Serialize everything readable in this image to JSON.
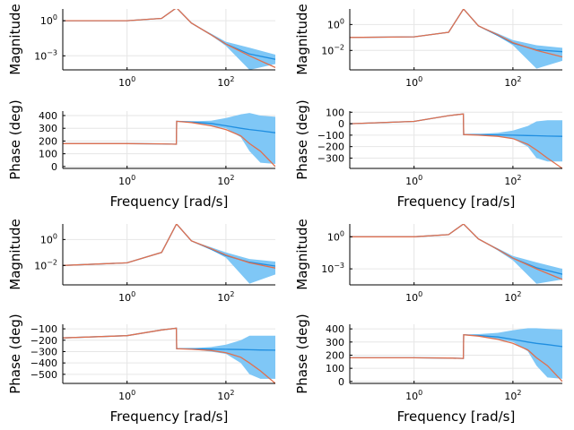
{
  "chart_data": {
    "type": "line",
    "title": "",
    "layout": "2 columns x 2 blocks, each block = magnitude panel over phase panel",
    "x_scale": "log10",
    "xlim": [
      0.05,
      1000
    ],
    "shared_x_ticks": [
      {
        "value": 1,
        "base": "10",
        "exp": "0"
      },
      {
        "value": 100,
        "base": "10",
        "exp": "2"
      }
    ],
    "series_names": [
      "uncertainty band",
      "mean response",
      "nominal response"
    ],
    "series_colors": {
      "band": "#7fc7f6",
      "mean": "#1f8ee0",
      "nominal": "#e0704f"
    },
    "resonance_frequency": 10,
    "grid": true,
    "blocks": [
      {
        "block": "top-left",
        "magnitude": {
          "ylabel": "Magnitude",
          "y_scale": "log10",
          "ylim_exp": [
            -4.2,
            1.0
          ],
          "yticks": [
            {
              "exp": 0,
              "label_base": "10",
              "label_exp": "0"
            },
            {
              "exp": -3,
              "label_base": "10",
              "label_exp": "−3"
            }
          ],
          "x": [
            0.05,
            1,
            5,
            10,
            20,
            50,
            100,
            300,
            1000
          ],
          "nominal_log10": [
            0.0,
            0.0,
            0.2,
            1.1,
            -0.2,
            -1.2,
            -2.0,
            -3.0,
            -4.0
          ],
          "mean_log10": [
            0.0,
            0.0,
            0.2,
            1.1,
            -0.2,
            -1.2,
            -2.0,
            -2.85,
            -3.3
          ],
          "band_upper_log10": [
            0.0,
            0.0,
            0.2,
            1.1,
            -0.2,
            -1.1,
            -1.8,
            -2.3,
            -2.9
          ],
          "band_lower_log10": [
            0.0,
            0.0,
            0.2,
            1.1,
            -0.2,
            -1.25,
            -2.15,
            -4.2,
            -3.7
          ]
        },
        "phase": {
          "ylabel": "Phase (deg)",
          "y_scale": "linear",
          "ylim": [
            -15,
            435
          ],
          "yticks": [
            0,
            100,
            200,
            300,
            400
          ],
          "x": [
            0.05,
            1,
            5,
            9.9,
            10.1,
            20,
            50,
            100,
            200,
            300,
            500,
            1000
          ],
          "nominal": [
            180,
            180,
            178,
            175,
            355,
            345,
            320,
            290,
            240,
            180,
            120,
            0
          ],
          "mean": [
            180,
            180,
            178,
            175,
            355,
            350,
            338,
            320,
            300,
            290,
            280,
            265
          ],
          "band_upper": [
            180,
            180,
            178,
            175,
            355,
            355,
            360,
            380,
            410,
            420,
            400,
            390
          ],
          "band_lower": [
            180,
            180,
            178,
            175,
            355,
            345,
            320,
            300,
            230,
            120,
            30,
            20
          ]
        }
      },
      {
        "block": "top-right",
        "magnitude": {
          "ylabel": "Magnitude",
          "y_scale": "log10",
          "ylim_exp": [
            -3.5,
            1.2
          ],
          "yticks": [
            {
              "exp": 0,
              "label_base": "10",
              "label_exp": "0"
            },
            {
              "exp": -2,
              "label_base": "10",
              "label_exp": "−2"
            }
          ],
          "x": [
            0.05,
            1,
            5,
            10,
            20,
            50,
            100,
            300,
            1000
          ],
          "nominal_log10": [
            -1.0,
            -0.95,
            -0.6,
            1.2,
            -0.1,
            -0.8,
            -1.4,
            -2.0,
            -2.5
          ],
          "mean_log10": [
            -1.0,
            -0.95,
            -0.6,
            1.2,
            -0.1,
            -0.85,
            -1.45,
            -1.95,
            -2.1
          ],
          "band_upper_log10": [
            -1.0,
            -0.95,
            -0.6,
            1.2,
            -0.1,
            -0.7,
            -1.2,
            -1.6,
            -1.8
          ],
          "band_lower_log10": [
            -1.0,
            -0.95,
            -0.6,
            1.2,
            -0.1,
            -0.9,
            -1.6,
            -3.4,
            -2.8
          ]
        },
        "phase": {
          "ylabel": "Phase (deg)",
          "y_scale": "linear",
          "ylim": [
            -390,
            110
          ],
          "yticks": [
            100,
            0,
            -100,
            -200,
            -300
          ],
          "x": [
            0.05,
            1,
            5,
            9.9,
            10.1,
            20,
            50,
            100,
            200,
            300,
            500,
            1000
          ],
          "nominal": [
            0,
            20,
            70,
            85,
            -95,
            -100,
            -110,
            -130,
            -180,
            -230,
            -300,
            -390
          ],
          "mean": [
            0,
            20,
            70,
            85,
            -95,
            -95,
            -98,
            -100,
            -103,
            -105,
            -108,
            -110
          ],
          "band_upper": [
            0,
            20,
            70,
            85,
            -95,
            -90,
            -80,
            -60,
            -20,
            20,
            30,
            30
          ],
          "band_lower": [
            0,
            20,
            70,
            85,
            -95,
            -100,
            -110,
            -130,
            -200,
            -300,
            -330,
            -330
          ]
        }
      },
      {
        "block": "bottom-left",
        "magnitude": {
          "ylabel": "Magnitude",
          "y_scale": "log10",
          "ylim_exp": [
            -3.5,
            1.2
          ],
          "yticks": [
            {
              "exp": 0,
              "label_base": "10",
              "label_exp": "0"
            },
            {
              "exp": -2,
              "label_base": "10",
              "label_exp": "−2"
            }
          ],
          "x": [
            0.05,
            1,
            5,
            10,
            20,
            50,
            100,
            300,
            1000
          ],
          "nominal_log10": [
            -2.0,
            -1.8,
            -1.0,
            1.2,
            -0.1,
            -0.7,
            -1.2,
            -1.8,
            -2.2
          ],
          "mean_log10": [
            -2.0,
            -1.8,
            -1.0,
            1.2,
            -0.1,
            -0.75,
            -1.25,
            -1.75,
            -2.05
          ],
          "band_upper_log10": [
            -2.0,
            -1.8,
            -1.0,
            1.2,
            -0.1,
            -0.6,
            -1.0,
            -1.5,
            -1.7
          ],
          "band_lower_log10": [
            -2.0,
            -1.8,
            -1.0,
            1.2,
            -0.1,
            -0.8,
            -1.4,
            -3.4,
            -2.7
          ]
        },
        "phase": {
          "ylabel": "Phase (deg)",
          "y_scale": "linear",
          "ylim": [
            -580,
            -60
          ],
          "yticks": [
            -100,
            -200,
            -300,
            -400,
            -500
          ],
          "x": [
            0.05,
            1,
            5,
            9.9,
            10.1,
            20,
            50,
            100,
            200,
            300,
            500,
            1000
          ],
          "nominal": [
            -180,
            -160,
            -110,
            -95,
            -275,
            -280,
            -290,
            -310,
            -350,
            -400,
            -470,
            -580
          ],
          "mean": [
            -180,
            -160,
            -110,
            -95,
            -275,
            -275,
            -278,
            -280,
            -282,
            -284,
            -286,
            -288
          ],
          "band_upper": [
            -180,
            -160,
            -110,
            -95,
            -275,
            -270,
            -260,
            -240,
            -200,
            -160,
            -160,
            -160
          ],
          "band_lower": [
            -180,
            -160,
            -110,
            -95,
            -275,
            -280,
            -300,
            -320,
            -400,
            -500,
            -540,
            -540
          ]
        }
      },
      {
        "block": "bottom-right",
        "magnitude": {
          "ylabel": "Magnitude",
          "y_scale": "log10",
          "ylim_exp": [
            -4.5,
            1.2
          ],
          "yticks": [
            {
              "exp": 0,
              "label_base": "10",
              "label_exp": "0"
            },
            {
              "exp": -3,
              "label_base": "10",
              "label_exp": "−3"
            }
          ],
          "x": [
            0.05,
            1,
            5,
            10,
            20,
            50,
            100,
            300,
            1000
          ],
          "nominal_log10": [
            0.0,
            0.0,
            0.2,
            1.2,
            -0.2,
            -1.2,
            -2.0,
            -3.0,
            -4.0
          ],
          "mean_log10": [
            0.0,
            0.0,
            0.2,
            1.2,
            -0.2,
            -1.2,
            -2.0,
            -2.9,
            -3.5
          ],
          "band_upper_log10": [
            0.0,
            0.0,
            0.2,
            1.2,
            -0.2,
            -1.1,
            -1.8,
            -2.4,
            -3.0
          ],
          "band_lower_log10": [
            0.0,
            0.0,
            0.2,
            1.2,
            -0.2,
            -1.3,
            -2.2,
            -4.4,
            -4.0
          ]
        },
        "phase": {
          "ylabel": "Phase (deg)",
          "y_scale": "linear",
          "ylim": [
            -15,
            435
          ],
          "yticks": [
            0,
            100,
            200,
            300,
            400
          ],
          "x": [
            0.05,
            1,
            5,
            9.9,
            10.1,
            20,
            50,
            100,
            200,
            300,
            500,
            1000
          ],
          "nominal": [
            180,
            180,
            178,
            175,
            355,
            345,
            320,
            290,
            240,
            180,
            120,
            0
          ],
          "mean": [
            180,
            180,
            178,
            175,
            355,
            350,
            338,
            320,
            300,
            290,
            280,
            265
          ],
          "band_upper": [
            180,
            180,
            178,
            175,
            355,
            360,
            370,
            390,
            405,
            405,
            400,
            395
          ],
          "band_lower": [
            180,
            180,
            178,
            175,
            355,
            345,
            320,
            300,
            230,
            120,
            30,
            20
          ]
        }
      }
    ],
    "xlabel": "Frequency [rad/s]"
  }
}
